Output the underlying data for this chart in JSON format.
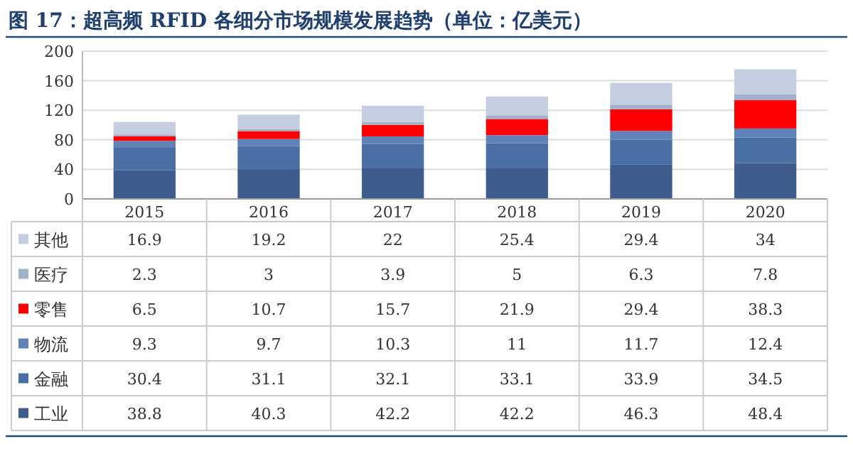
{
  "chart_data": {
    "type": "bar",
    "stacked": true,
    "title": "图 17：超高频 RFID 各细分市场规模发展趋势（单位：亿美元）",
    "categories": [
      "2015",
      "2016",
      "2017",
      "2018",
      "2019",
      "2020"
    ],
    "series": [
      {
        "name": "工业",
        "color": "#3e5d8e",
        "values": [
          38.8,
          40.3,
          42.2,
          42.2,
          46.3,
          48.4
        ]
      },
      {
        "name": "金融",
        "color": "#4a6fa5",
        "values": [
          30.4,
          31.1,
          32.1,
          33.1,
          33.9,
          34.5
        ]
      },
      {
        "name": "物流",
        "color": "#5f82b8",
        "values": [
          9.3,
          9.7,
          10.3,
          11,
          11.7,
          12.4
        ]
      },
      {
        "name": "零售",
        "color": "#ff0000",
        "values": [
          6.5,
          10.7,
          15.7,
          21.9,
          29.4,
          38.3
        ]
      },
      {
        "name": "医疗",
        "color": "#a3b0cb",
        "values": [
          2.3,
          3,
          3.9,
          5,
          6.3,
          7.8
        ]
      },
      {
        "name": "其他",
        "color": "#c5cde0",
        "values": [
          16.9,
          19.2,
          22,
          25.4,
          29.4,
          34
        ]
      }
    ],
    "ylim": [
      0,
      200
    ],
    "yticks": [
      0,
      40,
      80,
      120,
      160,
      200
    ],
    "grid": "y",
    "legend": "bottom",
    "data_labels": true
  }
}
